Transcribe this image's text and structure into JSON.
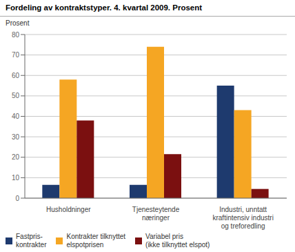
{
  "chart_data": {
    "type": "bar",
    "title": "Fordeling av kontraktstyper. 4. kvartal 2009. Prosent",
    "y_label": "Prosent",
    "categories": [
      "Husholdninger",
      "Tjenesteytende\nnæringer",
      "Industri, unntatt\nkraftintensiv industri\nog treforedling"
    ],
    "series": [
      {
        "name": "Fastpris-\nkontrakter",
        "color": "#1e3a6e",
        "values": [
          6.5,
          6.5,
          55
        ]
      },
      {
        "name": "Kontrakter tilknyttet\nelspotprisen",
        "color": "#f5a623",
        "values": [
          58,
          74,
          43
        ]
      },
      {
        "name": "Variabel pris\n(ikke tilknyttet elspot)",
        "color": "#7b1010",
        "values": [
          38,
          21.5,
          4.5
        ]
      }
    ],
    "ylim": [
      0,
      80
    ],
    "yticks": [
      0,
      10,
      20,
      30,
      40,
      50,
      60,
      70,
      80
    ],
    "grid": true,
    "legend": "bottom"
  }
}
